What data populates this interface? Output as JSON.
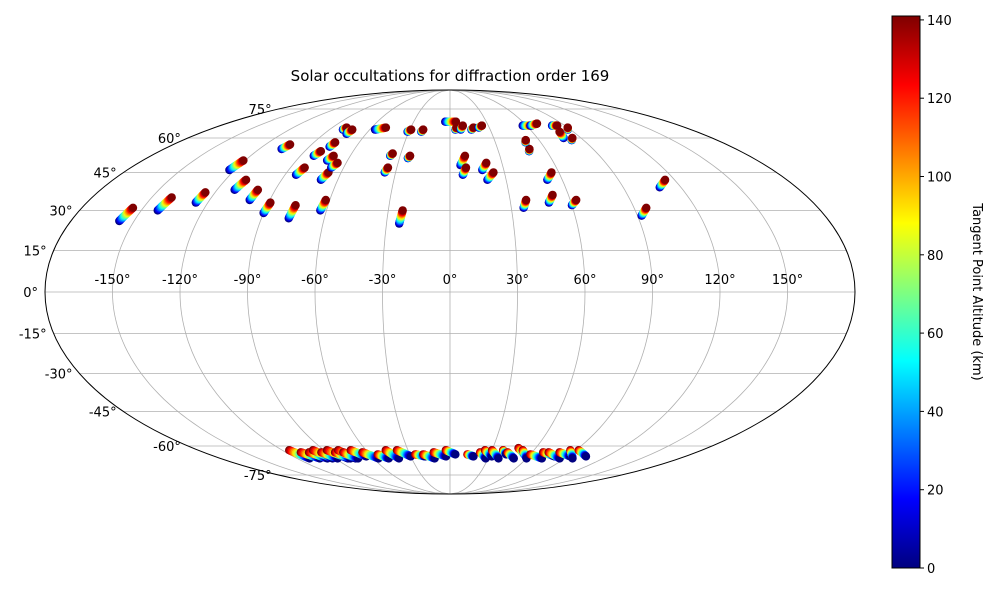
{
  "chart_data": {
    "type": "scatter",
    "projection": "mollweide",
    "title": "Solar occultations for diffraction order 169",
    "lon_tick_labels": [
      "-150°",
      "-120°",
      "-90°",
      "-60°",
      "-30°",
      "0°",
      "30°",
      "60°",
      "90°",
      "120°",
      "150°"
    ],
    "lon_ticks": [
      -150,
      -120,
      -90,
      -60,
      -30,
      0,
      30,
      60,
      90,
      120,
      150
    ],
    "lat_tick_labels": [
      "-75°",
      "-60°",
      "-45°",
      "-30°",
      "-15°",
      "0°",
      "15°",
      "30°",
      "45°",
      "60°",
      "75°"
    ],
    "lat_ticks": [
      -75,
      -60,
      -45,
      -30,
      -15,
      0,
      15,
      30,
      45,
      60,
      75
    ],
    "grid": true,
    "colorbar": {
      "label": "Tangent Point Altitude (km)",
      "colormap": "jet",
      "range": [
        0,
        141
      ],
      "tick_values": [
        0,
        20,
        40,
        60,
        80,
        100,
        120,
        140
      ],
      "tick_labels": [
        "0",
        "20",
        "40",
        "60",
        "80",
        "100",
        "120",
        "140"
      ]
    },
    "tracks_north": [
      {
        "lon": [
          -157,
          -155
        ],
        "lat": [
          26,
          31
        ]
      },
      {
        "lon": [
          -142,
          -140
        ],
        "lat": [
          30,
          35
        ]
      },
      {
        "lon": [
          -126,
          -125
        ],
        "lat": [
          33,
          37
        ]
      },
      {
        "lon": [
          -123,
          -121
        ],
        "lat": [
          46,
          50
        ]
      },
      {
        "lon": [
          -111,
          -109
        ],
        "lat": [
          38,
          42
        ]
      },
      {
        "lon": [
          -106,
          -104
        ],
        "lat": [
          55,
          57
        ]
      },
      {
        "lon": [
          -100,
          -99
        ],
        "lat": [
          34,
          38
        ]
      },
      {
        "lon": [
          -90,
          -89
        ],
        "lat": [
          29,
          33
        ]
      },
      {
        "lon": [
          -84,
          -82
        ],
        "lat": [
          44,
          47
        ]
      },
      {
        "lon": [
          -82,
          -80
        ],
        "lat": [
          52,
          54
        ]
      },
      {
        "lon": [
          -80,
          -79
        ],
        "lat": [
          64,
          65
        ]
      },
      {
        "lon": [
          -77,
          -76
        ],
        "lat": [
          56,
          58
        ]
      },
      {
        "lon": [
          -77,
          -76
        ],
        "lat": [
          27,
          32
        ]
      },
      {
        "lon": [
          -74,
          -73
        ],
        "lat": [
          62,
          64
        ]
      },
      {
        "lon": [
          -72,
          -70
        ],
        "lat": [
          50,
          52
        ]
      },
      {
        "lon": [
          -69,
          -67
        ],
        "lat": [
          42,
          45
        ]
      },
      {
        "lon": [
          -67,
          -65
        ],
        "lat": [
          47,
          49
        ]
      },
      {
        "lon": [
          -63,
          -62
        ],
        "lat": [
          30,
          34
        ]
      },
      {
        "lon": [
          -56,
          -49
        ],
        "lat": [
          64,
          65
        ]
      },
      {
        "lon": [
          -36,
          -35
        ],
        "lat": [
          45,
          47
        ]
      },
      {
        "lon": [
          -36,
          -35
        ],
        "lat": [
          52,
          53
        ]
      },
      {
        "lon": [
          -31,
          -29
        ],
        "lat": [
          63,
          64
        ]
      },
      {
        "lon": [
          -25,
          -24
        ],
        "lat": [
          51,
          52
        ]
      },
      {
        "lon": [
          -24,
          -23
        ],
        "lat": [
          25,
          30
        ]
      },
      {
        "lon": [
          -21,
          -20
        ],
        "lat": [
          63,
          64
        ]
      },
      {
        "lon": [
          -4,
          5
        ],
        "lat": [
          68,
          68
        ]
      },
      {
        "lon": [
          4,
          5
        ],
        "lat": [
          64,
          65
        ]
      },
      {
        "lon": [
          8,
          10
        ],
        "lat": [
          64,
          66
        ]
      },
      {
        "lon": [
          6,
          9
        ],
        "lat": [
          48,
          52
        ]
      },
      {
        "lon": [
          7,
          9
        ],
        "lat": [
          44,
          47
        ]
      },
      {
        "lon": [
          16,
          18
        ],
        "lat": [
          64,
          65
        ]
      },
      {
        "lon": [
          22,
          25
        ],
        "lat": [
          65,
          66
        ]
      },
      {
        "lon": [
          18,
          21
        ],
        "lat": [
          46,
          49
        ]
      },
      {
        "lon": [
          20,
          24
        ],
        "lat": [
          42,
          45
        ]
      },
      {
        "lon": [
          36,
          38
        ],
        "lat": [
          31,
          34
        ]
      },
      {
        "lon": [
          49,
          52
        ],
        "lat": [
          33,
          36
        ]
      },
      {
        "lon": [
          52,
          56
        ],
        "lat": [
          42,
          45
        ]
      },
      {
        "lon": [
          60,
          63
        ],
        "lat": [
          32,
          34
        ]
      },
      {
        "lon": [
          49,
          50
        ],
        "lat": [
          54,
          55
        ]
      },
      {
        "lon": [
          50,
          51
        ],
        "lat": [
          58,
          59
        ]
      },
      {
        "lon": [
          57,
          64
        ],
        "lat": [
          66,
          66
        ]
      },
      {
        "lon": [
          63,
          70
        ],
        "lat": [
          66,
          67
        ]
      },
      {
        "lon": [
          78,
          80
        ],
        "lat": [
          60,
          63
        ]
      },
      {
        "lon": [
          88,
          90
        ],
        "lat": [
          64,
          65
        ]
      },
      {
        "lon": [
          82,
          84
        ],
        "lat": [
          59,
          60
        ]
      },
      {
        "lon": [
          80,
          84
        ],
        "lat": [
          66,
          66
        ]
      },
      {
        "lon": [
          92,
          96
        ],
        "lat": [
          28,
          31
        ]
      },
      {
        "lon": [
          109,
          115
        ],
        "lat": [
          39,
          42
        ]
      }
    ],
    "tracks_south": [
      {
        "lon": [
          -115,
          -110
        ],
        "lat": [
          -62,
          -66
        ]
      },
      {
        "lon": [
          -109,
          -102
        ],
        "lat": [
          -63,
          -66
        ]
      },
      {
        "lon": [
          -103,
          -96
        ],
        "lat": [
          -63,
          -66
        ]
      },
      {
        "lon": [
          -98,
          -92
        ],
        "lat": [
          -62,
          -66
        ]
      },
      {
        "lon": [
          -94,
          -88
        ],
        "lat": [
          -63,
          -66
        ]
      },
      {
        "lon": [
          -88,
          -80
        ],
        "lat": [
          -62,
          -66
        ]
      },
      {
        "lon": [
          -84,
          -78
        ],
        "lat": [
          -63,
          -66
        ]
      },
      {
        "lon": [
          -80,
          -74
        ],
        "lat": [
          -62,
          -66
        ]
      },
      {
        "lon": [
          -78,
          -72
        ],
        "lat": [
          -63,
          -66
        ]
      },
      {
        "lon": [
          -71,
          -64
        ],
        "lat": [
          -62,
          -65
        ]
      },
      {
        "lon": [
          -64,
          -56
        ],
        "lat": [
          -63,
          -66
        ]
      },
      {
        "lon": [
          -54,
          -48
        ],
        "lat": [
          -64,
          -66
        ]
      },
      {
        "lon": [
          -46,
          -40
        ],
        "lat": [
          -62,
          -66
        ]
      },
      {
        "lon": [
          -38,
          -30
        ],
        "lat": [
          -62,
          -65
        ]
      },
      {
        "lon": [
          -26,
          -19
        ],
        "lat": [
          -64,
          -65
        ]
      },
      {
        "lon": [
          -20,
          -12
        ],
        "lat": [
          -64,
          -66
        ]
      },
      {
        "lon": [
          -12,
          -3
        ],
        "lat": [
          -63,
          -65
        ]
      },
      {
        "lon": [
          -3,
          4
        ],
        "lat": [
          -62,
          -64
        ]
      },
      {
        "lon": [
          13,
          18
        ],
        "lat": [
          -64,
          -65
        ]
      },
      {
        "lon": [
          22,
          28
        ],
        "lat": [
          -63,
          -66
        ]
      },
      {
        "lon": [
          25,
          32
        ],
        "lat": [
          -62,
          -65
        ]
      },
      {
        "lon": [
          30,
          38
        ],
        "lat": [
          -62,
          -66
        ]
      },
      {
        "lon": [
          38,
          42
        ],
        "lat": [
          -62,
          -64
        ]
      },
      {
        "lon": [
          42,
          50
        ],
        "lat": [
          -63,
          -66
        ]
      },
      {
        "lon": [
          48,
          58
        ],
        "lat": [
          -61,
          -65
        ]
      },
      {
        "lon": [
          52,
          60
        ],
        "lat": [
          -62,
          -66
        ]
      },
      {
        "lon": [
          60,
          72
        ],
        "lat": [
          -64,
          -66
        ]
      },
      {
        "lon": [
          68,
          80
        ],
        "lat": [
          -63,
          -65
        ]
      },
      {
        "lon": [
          72,
          86
        ],
        "lat": [
          -63,
          -66
        ]
      },
      {
        "lon": [
          80,
          92
        ],
        "lat": [
          -63,
          -65
        ]
      },
      {
        "lon": [
          86,
          96
        ],
        "lat": [
          -62,
          -66
        ]
      },
      {
        "lon": [
          92,
          104
        ],
        "lat": [
          -62,
          -65
        ]
      }
    ]
  }
}
